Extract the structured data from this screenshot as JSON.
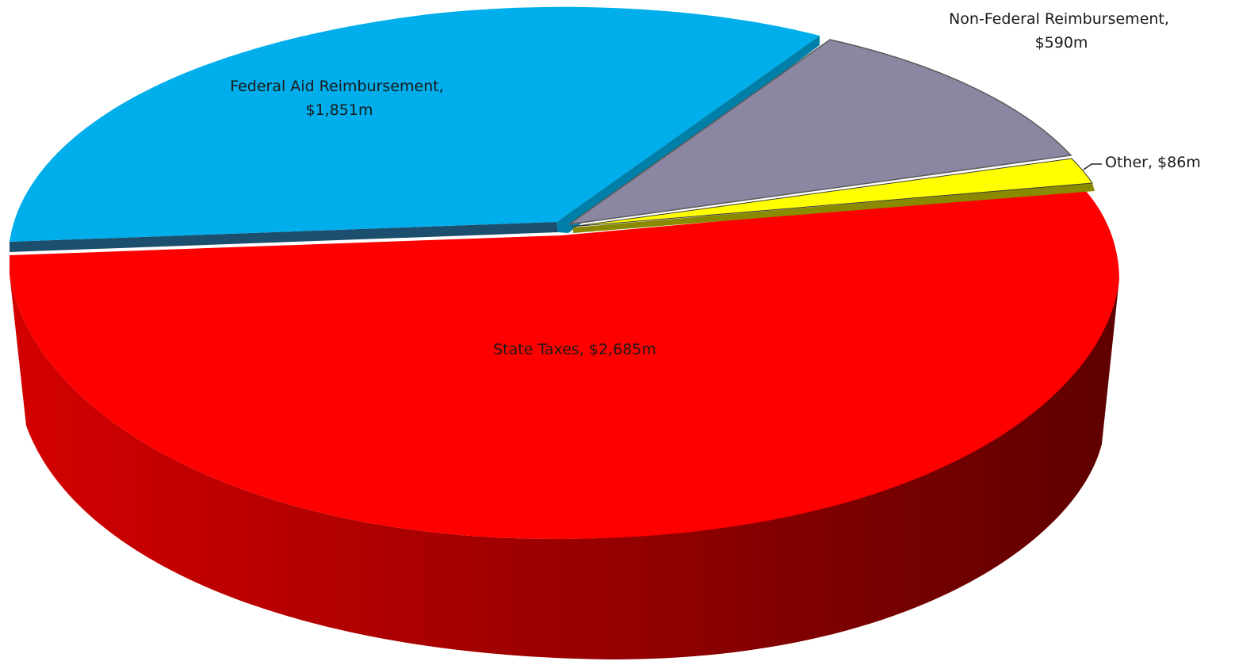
{
  "chart_data": {
    "type": "pie",
    "style": "3d",
    "slices": [
      {
        "label": "Federal Aid Reimbursement",
        "value": 1851,
        "value_label": "$1,851m",
        "color": "#00aeeb"
      },
      {
        "label": "Non-Federal Reimbursement",
        "value": 590,
        "value_label": "$590m",
        "color": "#8b87a3"
      },
      {
        "label": "Other",
        "value": 86,
        "value_label": "$86m",
        "color": "#ffff00"
      },
      {
        "label": "State Taxes",
        "value": 2685,
        "value_label": "$2,685m",
        "color": "#ff0000"
      }
    ]
  }
}
